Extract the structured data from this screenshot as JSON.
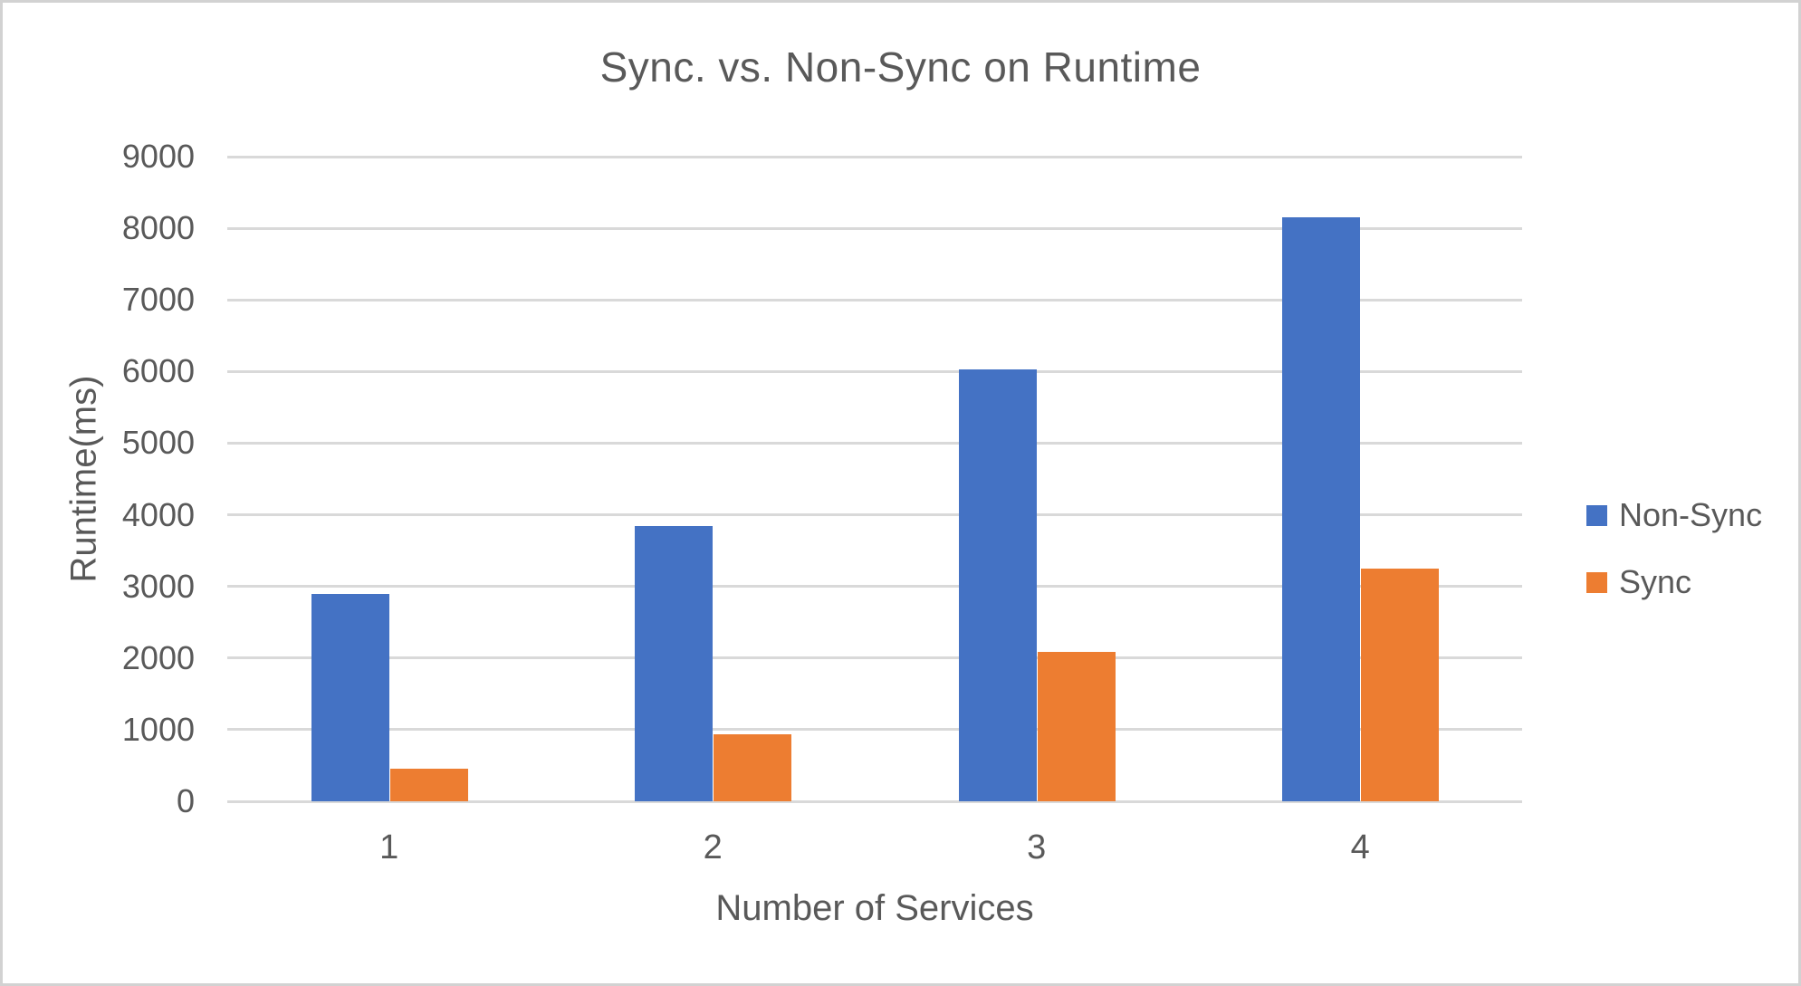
{
  "window": {
    "background": "#ffffff",
    "border_color": "#d2d2d2"
  },
  "chart_data": {
    "type": "bar",
    "title": "Sync. vs. Non-Sync on Runtime",
    "xlabel": "Number of Services",
    "ylabel": "Runtime(ms)",
    "categories": [
      "1",
      "2",
      "3",
      "4"
    ],
    "series": [
      {
        "name": "Non-Sync",
        "color": "#4472C4",
        "values": [
          2900,
          3840,
          6030,
          8150
        ]
      },
      {
        "name": "Sync",
        "color": "#ED7D31",
        "values": [
          460,
          930,
          2090,
          3250
        ]
      }
    ],
    "ylim": [
      0,
      9000
    ],
    "ytick_step": 1000,
    "ytick_labels": [
      "0",
      "1000",
      "2000",
      "3000",
      "4000",
      "5000",
      "6000",
      "7000",
      "8000",
      "9000"
    ],
    "grid": "horizontal",
    "gridline_color": "#d9d9d9",
    "text_color": "#595959",
    "legend_position": "right"
  }
}
